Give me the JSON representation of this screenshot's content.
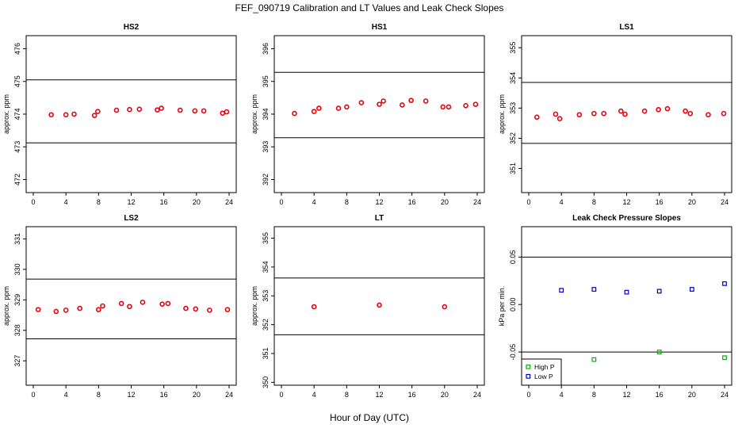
{
  "figure": {
    "title": "FEF_090719  Calibration and LT Values and Leak Check Slopes",
    "xlabel": "Hour of Day (UTC)"
  },
  "chart_data": [
    {
      "type": "scatter",
      "title": "HS2",
      "xlabel": "",
      "ylabel": "approx. ppm",
      "xlim": [
        0,
        24
      ],
      "ylim": [
        471.6,
        476.4
      ],
      "xticks": [
        0,
        4,
        8,
        12,
        16,
        20,
        24
      ],
      "yticks": [
        472,
        473,
        474,
        475,
        476
      ],
      "hlines": [
        475.05,
        473.12
      ],
      "grid": false,
      "series": [
        {
          "color": "#e8000b",
          "marker": "circle",
          "x": [
            2.2,
            4,
            5,
            7.5,
            7.9,
            10.2,
            11.8,
            13,
            15.2,
            15.7,
            18,
            19.8,
            20.9,
            23.2,
            23.7
          ],
          "y": [
            473.98,
            473.98,
            474.0,
            473.96,
            474.08,
            474.12,
            474.14,
            474.15,
            474.13,
            474.18,
            474.12,
            474.1,
            474.1,
            474.03,
            474.07
          ]
        }
      ]
    },
    {
      "type": "scatter",
      "title": "HS1",
      "xlabel": "",
      "ylabel": "approx. ppm",
      "xlim": [
        0,
        24
      ],
      "ylim": [
        391.6,
        396.4
      ],
      "xticks": [
        0,
        4,
        8,
        12,
        16,
        20,
        24
      ],
      "yticks": [
        392,
        393,
        394,
        395,
        396
      ],
      "hlines": [
        395.28,
        393.28
      ],
      "grid": false,
      "series": [
        {
          "color": "#e8000b",
          "marker": "circle",
          "x": [
            1.6,
            4,
            4.6,
            7,
            8,
            9.8,
            12,
            12.5,
            14.8,
            15.9,
            17.7,
            19.8,
            20.5,
            22.6,
            23.8
          ],
          "y": [
            394.02,
            394.08,
            394.18,
            394.18,
            394.22,
            394.35,
            394.3,
            394.4,
            394.28,
            394.42,
            394.4,
            394.22,
            394.22,
            394.26,
            394.3
          ]
        }
      ]
    },
    {
      "type": "scatter",
      "title": "LS1",
      "xlabel": "",
      "ylabel": "approx. ppm",
      "xlim": [
        0,
        24
      ],
      "ylim": [
        350.2,
        355.4
      ],
      "xticks": [
        0,
        4,
        8,
        12,
        16,
        20,
        24
      ],
      "yticks": [
        351,
        352,
        353,
        354,
        355
      ],
      "hlines": [
        353.85,
        351.83
      ],
      "grid": false,
      "series": [
        {
          "color": "#e8000b",
          "marker": "circle",
          "x": [
            1,
            3.3,
            3.8,
            6.2,
            8,
            9.2,
            11.3,
            11.8,
            14.2,
            15.9,
            17,
            19.2,
            19.8,
            22,
            23.9
          ],
          "y": [
            352.7,
            352.8,
            352.65,
            352.78,
            352.82,
            352.82,
            352.9,
            352.8,
            352.9,
            352.95,
            352.98,
            352.9,
            352.82,
            352.78,
            352.82
          ]
        }
      ]
    },
    {
      "type": "scatter",
      "title": "LS2",
      "xlabel": "",
      "ylabel": "approx. ppm",
      "xlim": [
        0,
        24
      ],
      "ylim": [
        326.2,
        331.4
      ],
      "xticks": [
        0,
        4,
        8,
        12,
        16,
        20,
        24
      ],
      "yticks": [
        327,
        328,
        329,
        330,
        331
      ],
      "hlines": [
        329.68,
        327.72
      ],
      "grid": false,
      "series": [
        {
          "color": "#e8000b",
          "marker": "circle",
          "x": [
            0.6,
            2.8,
            4,
            5.7,
            8,
            8.5,
            10.8,
            11.8,
            13.4,
            15.8,
            16.5,
            18.7,
            19.9,
            21.6,
            23.8
          ],
          "y": [
            328.68,
            328.62,
            328.66,
            328.72,
            328.68,
            328.8,
            328.88,
            328.78,
            328.92,
            328.86,
            328.88,
            328.72,
            328.7,
            328.66,
            328.68
          ]
        }
      ]
    },
    {
      "type": "scatter",
      "title": "LT",
      "xlabel": "",
      "ylabel": "approx. ppm",
      "xlim": [
        0,
        24
      ],
      "ylim": [
        349.9,
        355.4
      ],
      "xticks": [
        0,
        4,
        8,
        12,
        16,
        20,
        24
      ],
      "yticks": [
        350,
        351,
        352,
        353,
        354,
        355
      ],
      "hlines": [
        353.62,
        351.65
      ],
      "grid": false,
      "series": [
        {
          "color": "#e8000b",
          "marker": "circle",
          "x": [
            4,
            12,
            20
          ],
          "y": [
            352.62,
            352.68,
            352.62
          ]
        }
      ]
    },
    {
      "type": "scatter",
      "title": "Leak Check Pressure Slopes",
      "xlabel": "",
      "ylabel": "kPa per min.",
      "xlim": [
        0,
        24
      ],
      "ylim": [
        -0.085,
        0.082
      ],
      "xticks": [
        0,
        4,
        8,
        12,
        16,
        20,
        24
      ],
      "yticks": [
        -0.05,
        0.0,
        0.05
      ],
      "ytick_labels": [
        "-0.05",
        "0.00",
        "0.05"
      ],
      "hlines": [
        0.05,
        -0.05
      ],
      "grid": false,
      "legend": {
        "position": "bottom-left",
        "entries": [
          "High P",
          "Low P"
        ]
      },
      "series": [
        {
          "name": "High P",
          "color": "#00b400",
          "marker": "square",
          "x": [
            8,
            16,
            24
          ],
          "y": [
            -0.058,
            -0.05,
            -0.056
          ]
        },
        {
          "name": "Low P",
          "color": "#0000cc",
          "marker": "square",
          "x": [
            4,
            8,
            12,
            16,
            20,
            24
          ],
          "y": [
            0.015,
            0.016,
            0.013,
            0.014,
            0.016,
            0.022
          ]
        }
      ]
    }
  ]
}
